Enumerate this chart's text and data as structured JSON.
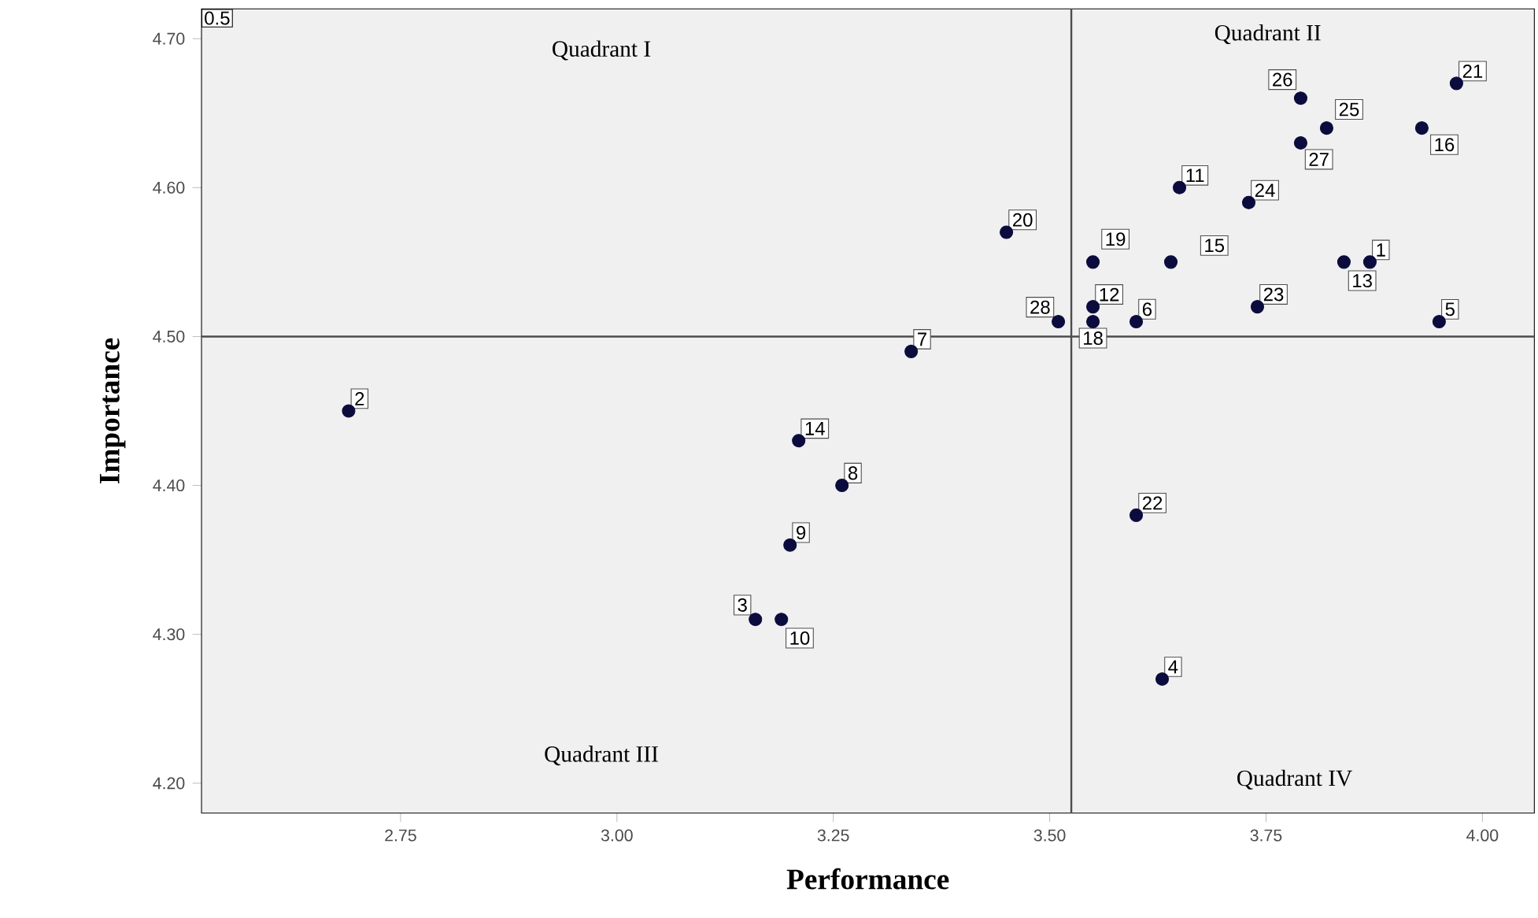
{
  "chart_data": {
    "type": "scatter",
    "xlabel": "Performance",
    "ylabel": "Importance",
    "xlim": [
      2.52,
      4.06
    ],
    "ylim": [
      4.18,
      4.72
    ],
    "xticks": [
      {
        "value": 2.75,
        "label": "2.75"
      },
      {
        "value": 3.0,
        "label": "3.00"
      },
      {
        "value": 3.25,
        "label": "3.25"
      },
      {
        "value": 3.5,
        "label": "3.50"
      },
      {
        "value": 3.75,
        "label": "3.75"
      },
      {
        "value": 4.0,
        "label": "4.00"
      }
    ],
    "yticks": [
      {
        "value": 4.2,
        "label": "4.20"
      },
      {
        "value": 4.3,
        "label": "4.30"
      },
      {
        "value": 4.4,
        "label": "4.40"
      },
      {
        "value": 4.5,
        "label": "4.50"
      },
      {
        "value": 4.6,
        "label": "4.60"
      },
      {
        "value": 4.7,
        "label": "4.70"
      }
    ],
    "x": [
      3.87,
      2.69,
      3.16,
      3.63,
      3.95,
      3.6,
      3.34,
      3.26,
      3.2,
      3.19,
      3.65,
      3.55,
      3.84,
      3.21,
      3.64,
      3.93,
      3.55,
      3.55,
      3.45,
      3.97,
      3.6,
      3.74,
      3.73,
      3.82,
      3.79,
      3.79,
      3.51
    ],
    "values": [
      4.55,
      4.45,
      4.31,
      4.27,
      4.51,
      4.51,
      4.49,
      4.4,
      4.36,
      4.31,
      4.6,
      4.52,
      4.55,
      4.43,
      4.55,
      4.64,
      4.51,
      4.55,
      4.57,
      4.67,
      4.38,
      4.52,
      4.59,
      4.64,
      4.66,
      4.63,
      4.51
    ],
    "color": "#0b0c3d",
    "marker": "circle",
    "grid": false,
    "ref_lines": [
      {
        "axis": "x",
        "value": 3.525
      },
      {
        "axis": "y",
        "value": 4.5
      }
    ],
    "annotations": [
      {
        "text": "1",
        "x": 3.87,
        "y": 4.55
      },
      {
        "text": "2",
        "x": 2.69,
        "y": 4.45
      },
      {
        "text": "3",
        "x": 3.16,
        "y": 4.31
      },
      {
        "text": "4",
        "x": 3.63,
        "y": 4.27
      },
      {
        "text": "5",
        "x": 3.95,
        "y": 4.51
      },
      {
        "text": "6",
        "x": 3.6,
        "y": 4.51
      },
      {
        "text": "7",
        "x": 3.34,
        "y": 4.49
      },
      {
        "text": "8",
        "x": 3.26,
        "y": 4.4
      },
      {
        "text": "9",
        "x": 3.2,
        "y": 4.36
      },
      {
        "text": "10",
        "x": 3.19,
        "y": 4.31
      },
      {
        "text": "11",
        "x": 3.65,
        "y": 4.6
      },
      {
        "text": "12",
        "x": 3.55,
        "y": 4.52
      },
      {
        "text": "13",
        "x": 3.84,
        "y": 4.55
      },
      {
        "text": "14",
        "x": 3.21,
        "y": 4.43
      },
      {
        "text": "15",
        "x": 3.64,
        "y": 4.55
      },
      {
        "text": "16",
        "x": 3.93,
        "y": 4.64
      },
      {
        "text": "18",
        "x": 3.55,
        "y": 4.51
      },
      {
        "text": "19",
        "x": 3.55,
        "y": 4.55
      },
      {
        "text": "20",
        "x": 3.45,
        "y": 4.57
      },
      {
        "text": "21",
        "x": 3.97,
        "y": 4.67
      },
      {
        "text": "22",
        "x": 3.6,
        "y": 4.38
      },
      {
        "text": "23",
        "x": 3.74,
        "y": 4.52
      },
      {
        "text": "24",
        "x": 3.73,
        "y": 4.59
      },
      {
        "text": "25",
        "x": 3.82,
        "y": 4.64
      },
      {
        "text": "26",
        "x": 3.79,
        "y": 4.66
      },
      {
        "text": "27",
        "x": 3.79,
        "y": 4.63
      },
      {
        "text": "28",
        "x": 3.51,
        "y": 4.51
      },
      "Quadrant I",
      "Quadrant II",
      "Quadrant III",
      "Quadrant IV",
      "0.5"
    ]
  }
}
